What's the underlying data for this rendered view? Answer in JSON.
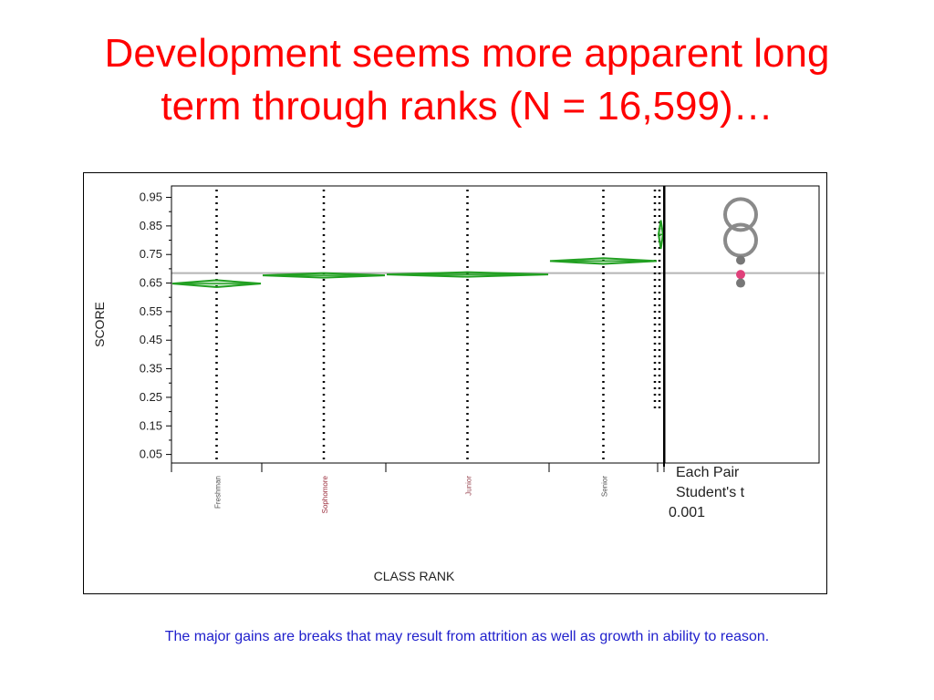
{
  "slide": {
    "title_line1": "Development seems more apparent long",
    "title_line2": "term through ranks (N = 16,599)…",
    "caption": "The major gains are breaks that may result from attrition as well as growth in ability to reason.",
    "title_color": "#ff0000",
    "caption_color": "#1f1fcc"
  },
  "chart_data": {
    "type": "diamond",
    "title": "",
    "xlabel": "CLASS RANK",
    "ylabel": "SCORE",
    "yticks": [
      "0.05",
      "0.15",
      "0.25",
      "0.35",
      "0.45",
      "0.55",
      "0.65",
      "0.75",
      "0.85",
      "0.95"
    ],
    "ylim": [
      0.02,
      0.99
    ],
    "grand_mean": 0.685,
    "categories": [
      {
        "label": "Freshman",
        "mean": 0.648,
        "ci_half": 0.012,
        "label_color": "#555555"
      },
      {
        "label": "Sophomore",
        "mean": 0.677,
        "ci_half": 0.008,
        "label_color": "#9b2d3c"
      },
      {
        "label": "Junior",
        "mean": 0.68,
        "ci_half": 0.008,
        "label_color": "#9b4a55"
      },
      {
        "label": "Senior",
        "mean": 0.727,
        "ci_half": 0.01,
        "label_color": "#555555"
      },
      {
        "label": "",
        "mean": 0.82,
        "ci_half": 0.05,
        "label_color": "#555555"
      }
    ],
    "comparison_panel": {
      "line1": "Each Pair",
      "line2": "Student's t",
      "line3": "0.001",
      "circles": [
        {
          "y": 0.89
        },
        {
          "y": 0.8
        }
      ],
      "points": [
        {
          "y": 0.73,
          "color": "#777777"
        },
        {
          "y": 0.68,
          "color": "#e0407a"
        },
        {
          "y": 0.65,
          "color": "#777777"
        }
      ]
    },
    "diamond_color": "#22a022",
    "mean_line_color": "#b5b5b5",
    "grid": false
  }
}
